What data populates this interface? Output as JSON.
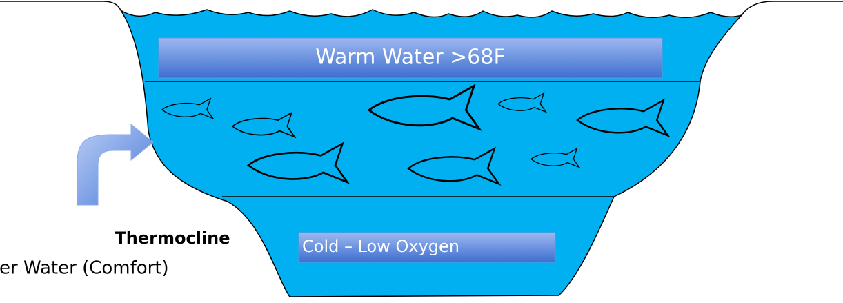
{
  "labels": {
    "warm": "Warm Water >68F",
    "cold": "Cold – Low Oxygen",
    "thermocline": "Thermocline",
    "comfort": "er Water (Comfort)"
  }
}
